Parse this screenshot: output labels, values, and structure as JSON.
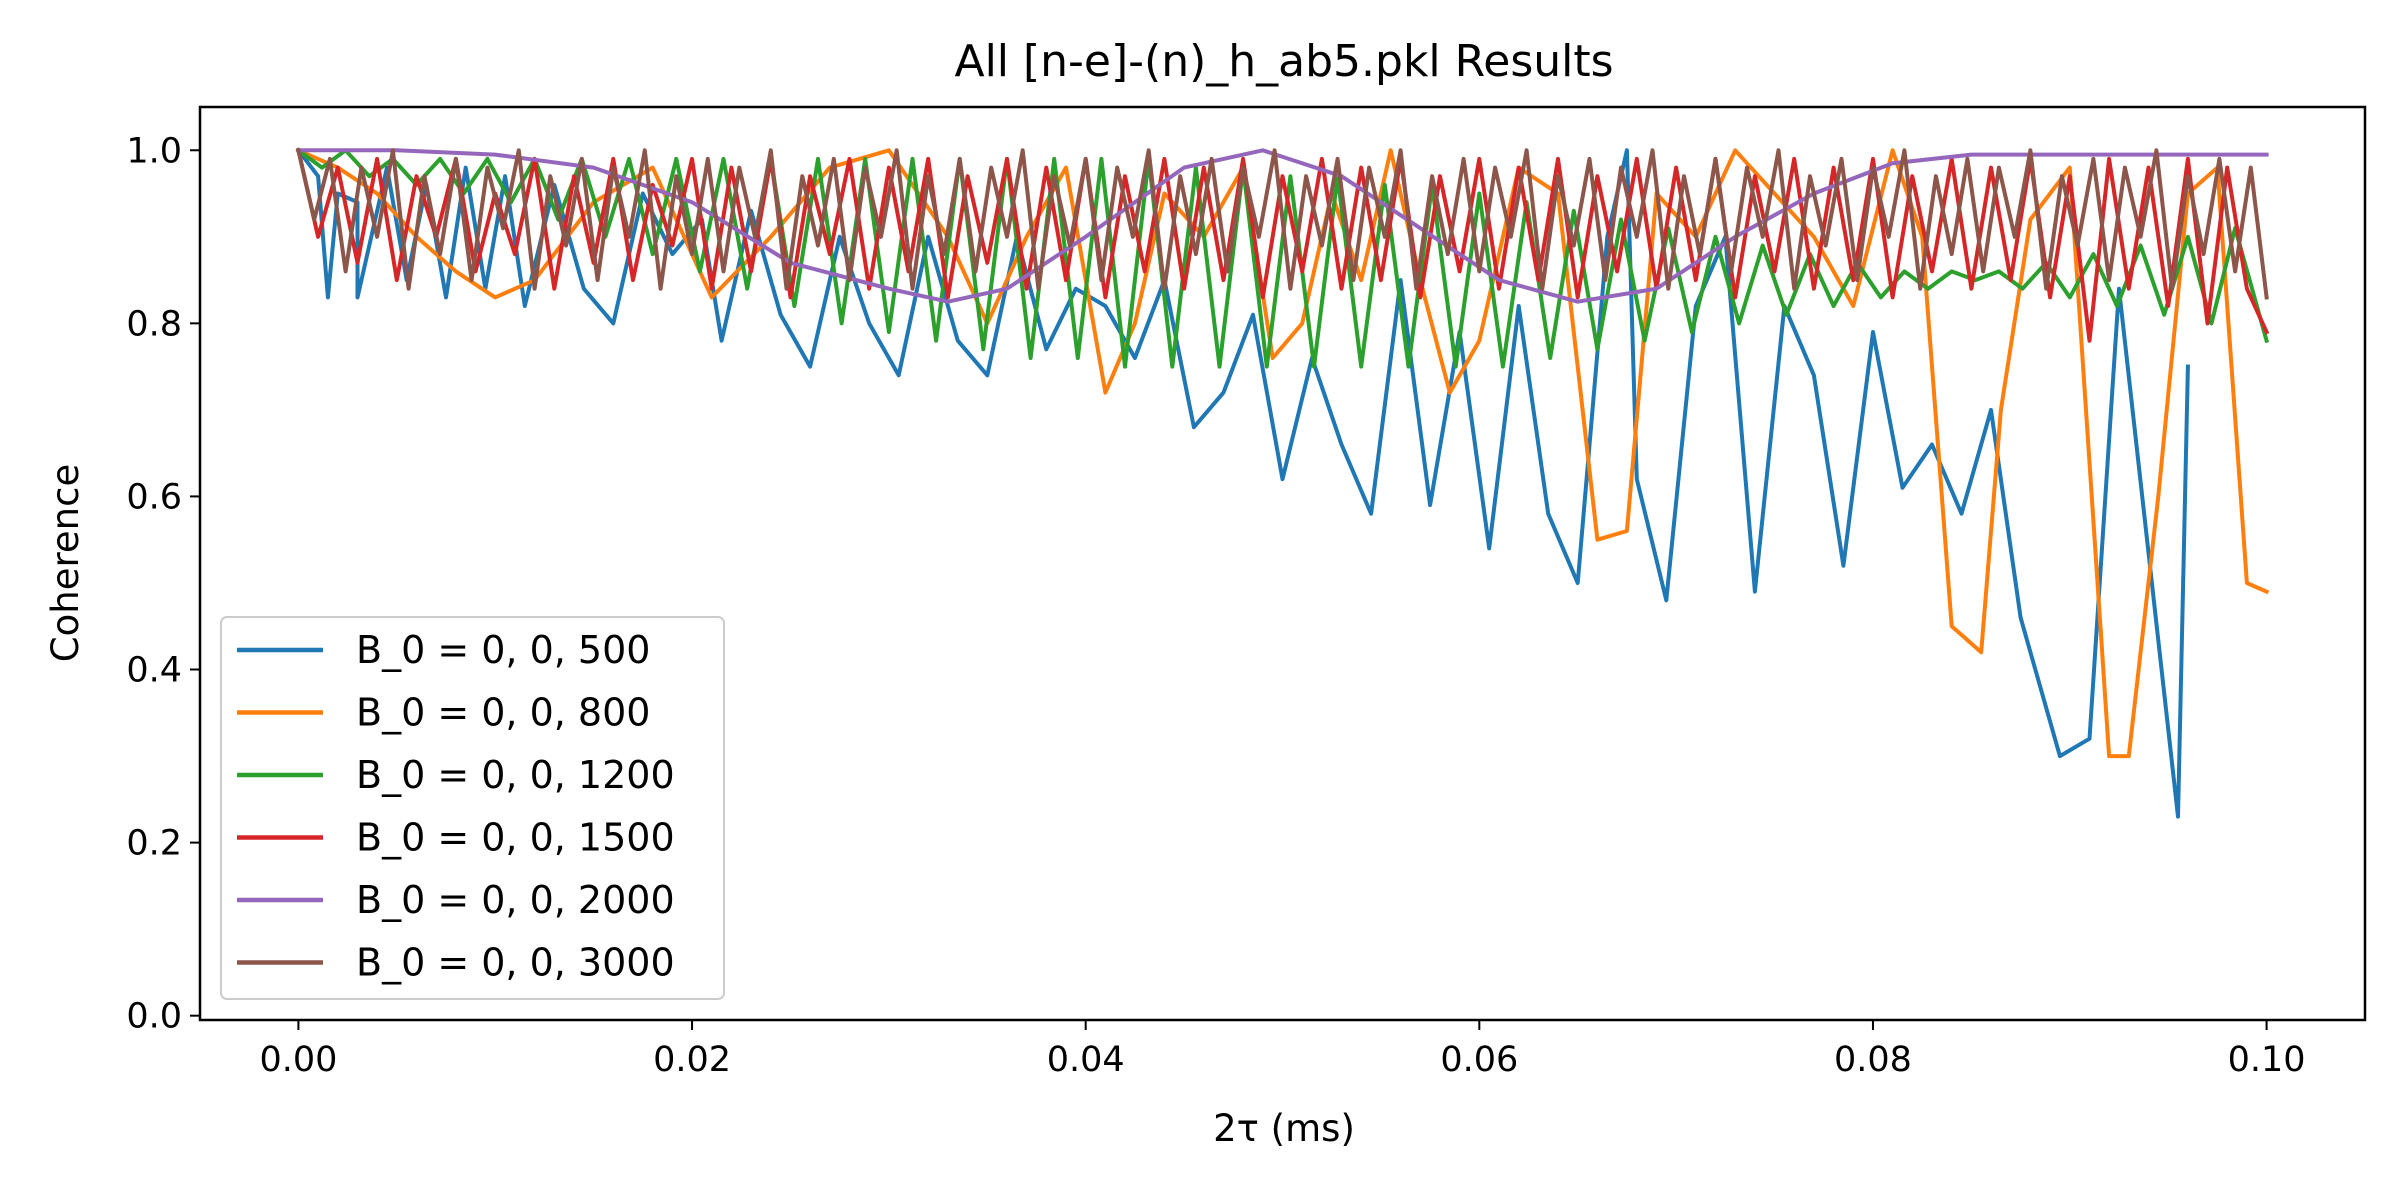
{
  "chart_data": {
    "type": "line",
    "title": "All [n-e]-(n)_h_ab5.pkl Results",
    "xlabel": "2τ (ms)",
    "ylabel": "Coherence",
    "xlim": [
      -0.005,
      0.105
    ],
    "ylim": [
      -0.005,
      1.05
    ],
    "xticks": [
      0.0,
      0.02,
      0.04,
      0.06,
      0.08,
      0.1
    ],
    "xtick_labels": [
      "0.00",
      "0.02",
      "0.04",
      "0.06",
      "0.08",
      "0.10"
    ],
    "yticks": [
      0.0,
      0.2,
      0.4,
      0.6,
      0.8,
      1.0
    ],
    "ytick_labels": [
      "0.0",
      "0.2",
      "0.4",
      "0.6",
      "0.8",
      "1.0"
    ],
    "grid": false,
    "legend_position": "lower-left",
    "series": [
      {
        "name": "B_0 = 0, 0, 500",
        "color": "#1f77b4",
        "x": [
          0.0,
          0.001,
          0.0015,
          0.002,
          0.003,
          0.003,
          0.0045,
          0.0055,
          0.0065,
          0.0075,
          0.0085,
          0.0095,
          0.0105,
          0.0115,
          0.013,
          0.0145,
          0.016,
          0.0175,
          0.019,
          0.0205,
          0.0215,
          0.023,
          0.0245,
          0.026,
          0.0275,
          0.029,
          0.0305,
          0.032,
          0.0335,
          0.035,
          0.0365,
          0.038,
          0.0395,
          0.041,
          0.0425,
          0.044,
          0.0455,
          0.047,
          0.0485,
          0.05,
          0.0515,
          0.053,
          0.0545,
          0.056,
          0.0575,
          0.059,
          0.0605,
          0.062,
          0.0635,
          0.065,
          0.0665,
          0.0675,
          0.068,
          0.0695,
          0.071,
          0.0725,
          0.074,
          0.0755,
          0.077,
          0.0785,
          0.08,
          0.0815,
          0.083,
          0.0845,
          0.086,
          0.0875,
          0.0895,
          0.091,
          0.0925,
          0.0955,
          0.096
        ],
        "y": [
          1.0,
          0.97,
          0.83,
          0.95,
          0.94,
          0.83,
          0.98,
          0.85,
          0.96,
          0.83,
          0.98,
          0.84,
          0.97,
          0.82,
          0.96,
          0.84,
          0.8,
          0.95,
          0.88,
          0.92,
          0.78,
          0.93,
          0.81,
          0.75,
          0.9,
          0.8,
          0.74,
          0.9,
          0.78,
          0.74,
          0.9,
          0.77,
          0.84,
          0.82,
          0.76,
          0.85,
          0.68,
          0.72,
          0.81,
          0.62,
          0.76,
          0.66,
          0.58,
          0.85,
          0.59,
          0.79,
          0.54,
          0.82,
          0.58,
          0.5,
          0.9,
          1.0,
          0.62,
          0.48,
          0.82,
          0.9,
          0.49,
          0.82,
          0.74,
          0.52,
          0.79,
          0.61,
          0.66,
          0.58,
          0.7,
          0.46,
          0.3,
          0.32,
          0.84,
          0.23,
          0.75
        ]
      },
      {
        "name": "B_0 = 0, 0, 800",
        "color": "#ff7f0e",
        "x": [
          0.0,
          0.002,
          0.004,
          0.006,
          0.008,
          0.01,
          0.012,
          0.015,
          0.018,
          0.021,
          0.024,
          0.027,
          0.03,
          0.033,
          0.035,
          0.037,
          0.039,
          0.041,
          0.0425,
          0.044,
          0.046,
          0.048,
          0.0495,
          0.051,
          0.0525,
          0.054,
          0.0555,
          0.057,
          0.0585,
          0.06,
          0.062,
          0.064,
          0.066,
          0.0675,
          0.069,
          0.071,
          0.073,
          0.075,
          0.077,
          0.079,
          0.081,
          0.0825,
          0.084,
          0.0855,
          0.0865,
          0.088,
          0.09,
          0.092,
          0.093,
          0.0945,
          0.096,
          0.0975,
          0.099,
          0.1
        ],
        "y": [
          1.0,
          0.98,
          0.95,
          0.9,
          0.86,
          0.83,
          0.85,
          0.94,
          0.98,
          0.83,
          0.9,
          0.98,
          1.0,
          0.9,
          0.8,
          0.9,
          0.98,
          0.72,
          0.8,
          0.95,
          0.9,
          0.98,
          0.76,
          0.8,
          0.95,
          0.85,
          1.0,
          0.85,
          0.72,
          0.78,
          0.98,
          0.95,
          0.55,
          0.56,
          0.95,
          0.9,
          1.0,
          0.95,
          0.9,
          0.82,
          1.0,
          0.9,
          0.45,
          0.42,
          0.7,
          0.92,
          0.98,
          0.3,
          0.3,
          0.6,
          0.95,
          0.98,
          0.5,
          0.49
        ]
      },
      {
        "name": "B_0 = 0, 0, 1200",
        "color": "#2ca02c",
        "x": [
          0.0,
          0.0012,
          0.0024,
          0.0036,
          0.0048,
          0.006,
          0.0072,
          0.0084,
          0.0096,
          0.0108,
          0.012,
          0.0132,
          0.0144,
          0.0156,
          0.0168,
          0.018,
          0.0192,
          0.0204,
          0.0216,
          0.0228,
          0.024,
          0.0252,
          0.0264,
          0.0276,
          0.0288,
          0.03,
          0.0312,
          0.0324,
          0.0336,
          0.0348,
          0.036,
          0.0372,
          0.0384,
          0.0396,
          0.0408,
          0.042,
          0.0432,
          0.0444,
          0.0456,
          0.0468,
          0.048,
          0.0492,
          0.0504,
          0.0516,
          0.0528,
          0.054,
          0.0552,
          0.0564,
          0.0576,
          0.0588,
          0.06,
          0.0612,
          0.0624,
          0.0636,
          0.0648,
          0.066,
          0.0672,
          0.0684,
          0.0696,
          0.0708,
          0.072,
          0.0732,
          0.0744,
          0.0756,
          0.0768,
          0.078,
          0.0792,
          0.0804,
          0.0816,
          0.0828,
          0.084,
          0.0852,
          0.0864,
          0.0876,
          0.0888,
          0.09,
          0.0912,
          0.0924,
          0.0936,
          0.0948,
          0.096,
          0.0972,
          0.0984,
          0.1
        ],
        "y": [
          1.0,
          0.98,
          1.0,
          0.97,
          0.99,
          0.96,
          0.99,
          0.95,
          0.99,
          0.94,
          0.99,
          0.92,
          0.99,
          0.9,
          0.99,
          0.88,
          0.99,
          0.86,
          0.99,
          0.84,
          0.99,
          0.82,
          0.99,
          0.8,
          0.99,
          0.79,
          0.99,
          0.78,
          0.99,
          0.77,
          0.99,
          0.76,
          0.99,
          0.76,
          0.99,
          0.75,
          0.99,
          0.75,
          0.98,
          0.75,
          0.98,
          0.75,
          0.97,
          0.75,
          0.97,
          0.75,
          0.96,
          0.75,
          0.96,
          0.75,
          0.95,
          0.75,
          0.94,
          0.76,
          0.93,
          0.77,
          0.92,
          0.78,
          0.91,
          0.79,
          0.9,
          0.8,
          0.89,
          0.81,
          0.88,
          0.82,
          0.87,
          0.83,
          0.86,
          0.84,
          0.86,
          0.85,
          0.86,
          0.84,
          0.87,
          0.83,
          0.88,
          0.82,
          0.89,
          0.81,
          0.9,
          0.8,
          0.91,
          0.78
        ]
      },
      {
        "name": "B_0 = 0, 0, 1500",
        "color": "#d62728",
        "x": [
          0.0,
          0.001,
          0.002,
          0.003,
          0.004,
          0.005,
          0.006,
          0.007,
          0.008,
          0.009,
          0.01,
          0.011,
          0.012,
          0.013,
          0.014,
          0.015,
          0.016,
          0.017,
          0.018,
          0.019,
          0.02,
          0.021,
          0.022,
          0.023,
          0.024,
          0.025,
          0.026,
          0.027,
          0.028,
          0.029,
          0.03,
          0.031,
          0.032,
          0.033,
          0.034,
          0.035,
          0.036,
          0.037,
          0.038,
          0.039,
          0.04,
          0.041,
          0.042,
          0.043,
          0.044,
          0.045,
          0.046,
          0.047,
          0.048,
          0.049,
          0.05,
          0.051,
          0.052,
          0.053,
          0.054,
          0.055,
          0.056,
          0.057,
          0.058,
          0.059,
          0.06,
          0.061,
          0.062,
          0.063,
          0.064,
          0.065,
          0.066,
          0.067,
          0.068,
          0.069,
          0.07,
          0.071,
          0.072,
          0.073,
          0.074,
          0.075,
          0.076,
          0.077,
          0.078,
          0.079,
          0.08,
          0.081,
          0.082,
          0.083,
          0.084,
          0.085,
          0.086,
          0.087,
          0.088,
          0.089,
          0.09,
          0.091,
          0.092,
          0.093,
          0.094,
          0.095,
          0.096,
          0.097,
          0.098,
          0.099,
          0.1
        ],
        "y": [
          1.0,
          0.9,
          0.98,
          0.87,
          0.99,
          0.85,
          0.97,
          0.9,
          0.99,
          0.86,
          0.95,
          0.88,
          0.99,
          0.84,
          0.97,
          0.87,
          0.99,
          0.85,
          0.96,
          0.89,
          0.99,
          0.84,
          0.98,
          0.86,
          0.99,
          0.83,
          0.97,
          0.88,
          0.99,
          0.84,
          0.98,
          0.86,
          0.99,
          0.83,
          0.97,
          0.87,
          0.99,
          0.84,
          0.98,
          0.85,
          0.99,
          0.83,
          0.97,
          0.86,
          0.99,
          0.84,
          0.98,
          0.85,
          0.99,
          0.83,
          0.97,
          0.86,
          0.99,
          0.84,
          0.98,
          0.85,
          0.99,
          0.83,
          0.97,
          0.86,
          0.99,
          0.84,
          0.98,
          0.85,
          0.99,
          0.83,
          0.97,
          0.86,
          0.99,
          0.84,
          0.98,
          0.85,
          0.99,
          0.83,
          0.97,
          0.86,
          0.99,
          0.84,
          0.98,
          0.85,
          0.99,
          0.83,
          0.97,
          0.86,
          0.99,
          0.84,
          0.98,
          0.85,
          0.99,
          0.83,
          0.97,
          0.78,
          0.99,
          0.84,
          0.98,
          0.82,
          0.99,
          0.8,
          0.98,
          0.84,
          0.79
        ]
      },
      {
        "name": "B_0 = 0, 0, 2000",
        "color": "#9467bd",
        "x": [
          0.0,
          0.005,
          0.01,
          0.015,
          0.02,
          0.025,
          0.03,
          0.033,
          0.036,
          0.04,
          0.045,
          0.049,
          0.053,
          0.057,
          0.061,
          0.065,
          0.069,
          0.073,
          0.077,
          0.081,
          0.085,
          0.09,
          0.095,
          0.1
        ],
        "y": [
          1.0,
          1.0,
          0.995,
          0.98,
          0.94,
          0.87,
          0.84,
          0.825,
          0.84,
          0.9,
          0.98,
          1.0,
          0.97,
          0.91,
          0.85,
          0.825,
          0.84,
          0.9,
          0.95,
          0.985,
          0.995,
          0.995,
          0.995,
          0.995
        ]
      },
      {
        "name": "B_0 = 0, 0, 3000",
        "color": "#8c564b",
        "x": [
          0.0,
          0.0008,
          0.0016,
          0.0024,
          0.0032,
          0.004,
          0.0048,
          0.0056,
          0.0064,
          0.0072,
          0.008,
          0.0088,
          0.0096,
          0.0104,
          0.0112,
          0.012,
          0.0128,
          0.0136,
          0.0144,
          0.0152,
          0.016,
          0.0168,
          0.0176,
          0.0184,
          0.0192,
          0.02,
          0.0208,
          0.0216,
          0.0224,
          0.0232,
          0.024,
          0.0248,
          0.0256,
          0.0264,
          0.0272,
          0.028,
          0.0288,
          0.0296,
          0.0304,
          0.0312,
          0.032,
          0.0328,
          0.0336,
          0.0344,
          0.0352,
          0.036,
          0.0368,
          0.0376,
          0.0384,
          0.0392,
          0.04,
          0.0408,
          0.0416,
          0.0424,
          0.0432,
          0.044,
          0.0448,
          0.0456,
          0.0464,
          0.0472,
          0.048,
          0.0488,
          0.0496,
          0.0504,
          0.0512,
          0.052,
          0.0528,
          0.0536,
          0.0544,
          0.0552,
          0.056,
          0.0568,
          0.0576,
          0.0584,
          0.0592,
          0.06,
          0.0608,
          0.0616,
          0.0624,
          0.0632,
          0.064,
          0.0648,
          0.0656,
          0.0664,
          0.0672,
          0.068,
          0.0688,
          0.0696,
          0.0704,
          0.0712,
          0.072,
          0.0728,
          0.0736,
          0.0744,
          0.0752,
          0.076,
          0.0768,
          0.0776,
          0.0784,
          0.0792,
          0.08,
          0.0808,
          0.0816,
          0.0824,
          0.0832,
          0.084,
          0.0848,
          0.0856,
          0.0864,
          0.0872,
          0.088,
          0.0888,
          0.0896,
          0.0904,
          0.0912,
          0.092,
          0.0928,
          0.0936,
          0.0944,
          0.0952,
          0.096,
          0.0968,
          0.0976,
          0.0984,
          0.0992,
          0.1
        ],
        "y": [
          1.0,
          0.92,
          0.99,
          0.86,
          0.98,
          0.9,
          1.0,
          0.84,
          0.97,
          0.88,
          0.99,
          0.85,
          0.98,
          0.91,
          1.0,
          0.84,
          0.97,
          0.89,
          0.99,
          0.85,
          0.98,
          0.9,
          1.0,
          0.84,
          0.97,
          0.88,
          0.99,
          0.86,
          0.98,
          0.9,
          1.0,
          0.84,
          0.97,
          0.89,
          0.99,
          0.85,
          0.98,
          0.9,
          1.0,
          0.84,
          0.97,
          0.88,
          0.99,
          0.86,
          0.98,
          0.9,
          1.0,
          0.84,
          0.97,
          0.89,
          0.99,
          0.85,
          0.98,
          0.9,
          1.0,
          0.84,
          0.97,
          0.88,
          0.99,
          0.86,
          0.98,
          0.9,
          1.0,
          0.84,
          0.97,
          0.89,
          0.99,
          0.85,
          0.98,
          0.9,
          1.0,
          0.84,
          0.97,
          0.88,
          0.99,
          0.86,
          0.98,
          0.9,
          1.0,
          0.84,
          0.97,
          0.89,
          0.99,
          0.85,
          0.98,
          0.9,
          1.0,
          0.84,
          0.97,
          0.88,
          0.99,
          0.86,
          0.98,
          0.9,
          1.0,
          0.84,
          0.97,
          0.89,
          0.99,
          0.85,
          0.98,
          0.9,
          1.0,
          0.84,
          0.97,
          0.88,
          0.99,
          0.86,
          0.98,
          0.9,
          1.0,
          0.84,
          0.97,
          0.89,
          0.99,
          0.85,
          0.98,
          0.9,
          1.0,
          0.84,
          0.97,
          0.88,
          0.99,
          0.86,
          0.98,
          0.83
        ]
      }
    ]
  }
}
